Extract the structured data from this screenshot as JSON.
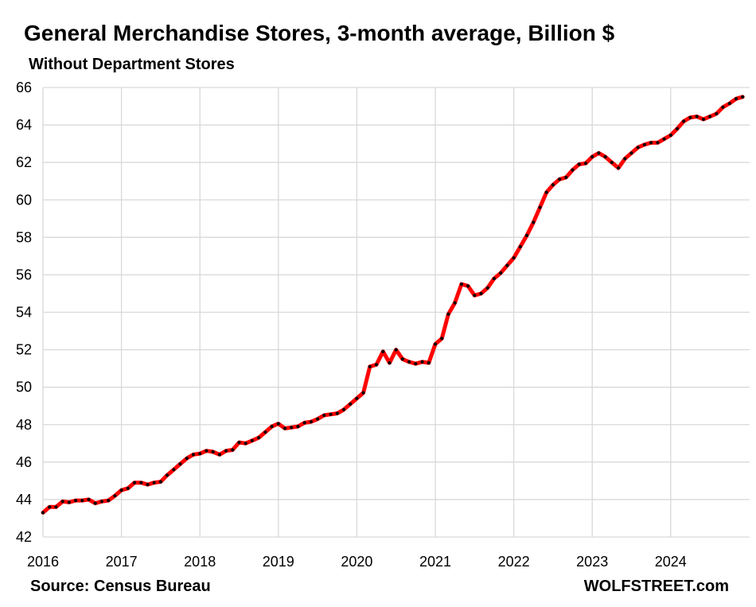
{
  "title": "General Merchandise Stores, 3-month average, Billion $",
  "subtitle": "Without Department Stores",
  "source": "Source: Census Bureau",
  "brand": "WOLFSTREET.com",
  "colors": {
    "line": "#ff0000",
    "markers": "#000000",
    "grid": "#d9d9d9"
  },
  "chart_data": {
    "type": "line",
    "title": "General Merchandise Stores, 3-month average, Billion $",
    "subtitle": "Without Department Stores",
    "xlabel": "",
    "ylabel": "",
    "ylim": [
      42,
      66
    ],
    "yticks": [
      42,
      44,
      46,
      48,
      50,
      52,
      54,
      56,
      58,
      60,
      62,
      64,
      66
    ],
    "xticks": [
      2016,
      2017,
      2018,
      2019,
      2020,
      2021,
      2022,
      2023,
      2024
    ],
    "xlim": [
      2016,
      2024.99
    ],
    "grid": true,
    "legend": "none",
    "x_unit": "year (monthly points, Jan 2016 – Dec 2024)",
    "series": [
      {
        "values": [
          43.3,
          43.6,
          43.6,
          43.9,
          43.85,
          43.95,
          43.95,
          44.0,
          43.8,
          43.9,
          43.95,
          44.2,
          44.5,
          44.6,
          44.9,
          44.9,
          44.8,
          44.9,
          44.95,
          45.3,
          45.6,
          45.9,
          46.2,
          46.4,
          46.45,
          46.6,
          46.55,
          46.4,
          46.6,
          46.65,
          47.05,
          47.0,
          47.15,
          47.3,
          47.6,
          47.9,
          48.05,
          47.8,
          47.85,
          47.9,
          48.1,
          48.15,
          48.3,
          48.5,
          48.55,
          48.6,
          48.8,
          49.1,
          49.4,
          49.7,
          51.1,
          51.2,
          51.9,
          51.3,
          52.0,
          51.5,
          51.35,
          51.25,
          51.35,
          51.3,
          52.3,
          52.6,
          53.9,
          54.5,
          55.5,
          55.4,
          54.9,
          55.0,
          55.3,
          55.8,
          56.1,
          56.5,
          56.9,
          57.5,
          58.1,
          58.8,
          59.6,
          60.4,
          60.8,
          61.1,
          61.2,
          61.6,
          61.9,
          61.95,
          62.3,
          62.5,
          62.3,
          62.0,
          61.7,
          62.2,
          62.5,
          62.8,
          62.95,
          63.05,
          63.05,
          63.25,
          63.45,
          63.8,
          64.2,
          64.4,
          64.45,
          64.3,
          64.45,
          64.6,
          64.95,
          65.15,
          65.4,
          65.5
        ]
      }
    ]
  }
}
